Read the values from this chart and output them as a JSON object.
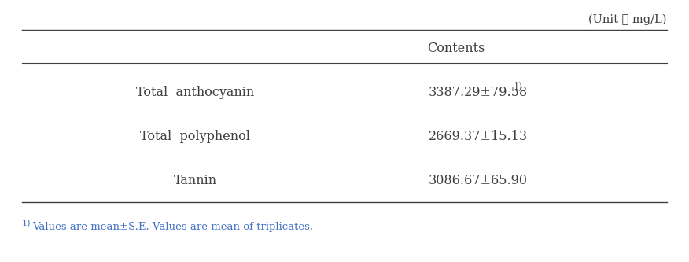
{
  "unit_label": "(Unit ： mg/L)",
  "col_header": "Contents",
  "rows": [
    {
      "label": "Total  anthocyanin",
      "value": "3387.29±79.58",
      "superscript": "1)"
    },
    {
      "label": "Total  polyphenol",
      "value": "2669.37±15.13",
      "superscript": ""
    },
    {
      "label": "Tannin",
      "value": "3086.67±65.90",
      "superscript": ""
    }
  ],
  "footnote_super": "1)",
  "footnote_text": "Values are mean±S.E. Values are mean of triplicates.",
  "footnote_color": "#4472c4",
  "background_color": "#ffffff",
  "text_color": "#404040",
  "line_color": "#404040",
  "font_size_unit": 10.5,
  "font_size_header": 11.5,
  "font_size_data": 11.5,
  "font_size_footnote": 9.5
}
